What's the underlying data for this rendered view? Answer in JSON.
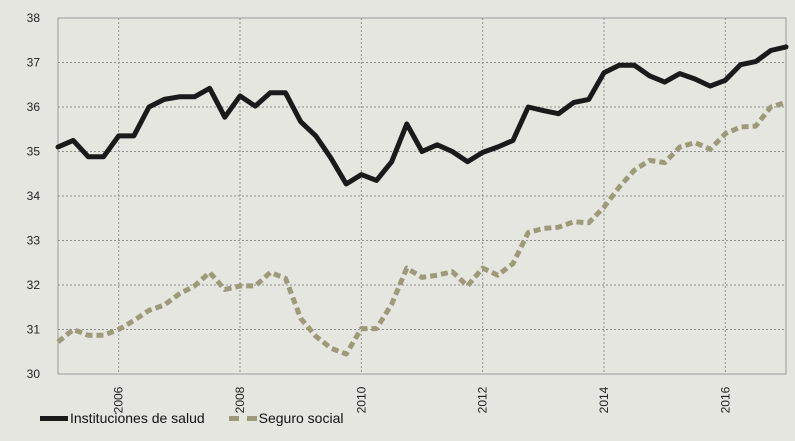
{
  "chart_data": {
    "type": "line",
    "title": "",
    "xlabel": "",
    "ylabel": "",
    "ylim": [
      30,
      38
    ],
    "xlim": [
      2005.0,
      2017.0
    ],
    "y_ticks": [
      "30",
      "31",
      "32",
      "33",
      "34",
      "35",
      "36",
      "37",
      "38"
    ],
    "x_ticks": [
      "2006",
      "2008",
      "2010",
      "2012",
      "2014",
      "2016"
    ],
    "grid": true,
    "legend": "bottom-left",
    "series": [
      {
        "name": "Instituciones de salud",
        "color": "#1a1a1a",
        "style": "solid",
        "x": [
          2005.0,
          2005.25,
          2005.5,
          2005.75,
          2006.0,
          2006.25,
          2006.5,
          2006.75,
          2007.0,
          2007.25,
          2007.5,
          2007.75,
          2008.0,
          2008.25,
          2008.5,
          2008.75,
          2009.0,
          2009.25,
          2009.5,
          2009.75,
          2010.0,
          2010.25,
          2010.5,
          2010.75,
          2011.0,
          2011.25,
          2011.5,
          2011.75,
          2012.0,
          2012.25,
          2012.5,
          2012.75,
          2013.0,
          2013.25,
          2013.5,
          2013.75,
          2014.0,
          2014.25,
          2014.5,
          2014.75,
          2015.0,
          2015.25,
          2015.5,
          2015.75,
          2016.0,
          2016.25,
          2016.5,
          2016.75,
          2017.0
        ],
        "values": [
          35.1,
          35.25,
          34.88,
          34.88,
          35.35,
          35.35,
          36.0,
          36.17,
          36.23,
          36.23,
          36.42,
          35.77,
          36.25,
          36.02,
          36.32,
          36.32,
          35.67,
          35.35,
          34.85,
          34.27,
          34.48,
          34.35,
          34.77,
          35.62,
          35.0,
          35.15,
          35.0,
          34.77,
          34.98,
          35.1,
          35.25,
          36.0,
          35.92,
          35.85,
          36.1,
          36.17,
          36.77,
          36.94,
          36.94,
          36.7,
          36.56,
          36.75,
          36.63,
          36.47,
          36.6,
          36.95,
          37.02,
          37.27,
          37.35
        ]
      },
      {
        "name": "Seguro social",
        "color": "#9c9a79",
        "style": "dashed",
        "x": [
          2005.0,
          2005.25,
          2005.5,
          2005.75,
          2006.0,
          2006.25,
          2006.5,
          2006.75,
          2007.0,
          2007.25,
          2007.5,
          2007.75,
          2008.0,
          2008.25,
          2008.5,
          2008.75,
          2009.0,
          2009.25,
          2009.5,
          2009.75,
          2010.0,
          2010.25,
          2010.5,
          2010.75,
          2011.0,
          2011.25,
          2011.5,
          2011.75,
          2012.0,
          2012.25,
          2012.5,
          2012.75,
          2013.0,
          2013.25,
          2013.5,
          2013.75,
          2014.0,
          2014.25,
          2014.5,
          2014.75,
          2015.0,
          2015.25,
          2015.5,
          2015.75,
          2016.0,
          2016.25,
          2016.5,
          2016.75,
          2017.0
        ],
        "values": [
          30.72,
          31.0,
          30.87,
          30.87,
          31.0,
          31.2,
          31.43,
          31.55,
          31.8,
          31.98,
          32.28,
          31.9,
          31.98,
          31.98,
          32.28,
          32.15,
          31.25,
          30.85,
          30.58,
          30.45,
          31.02,
          31.02,
          31.57,
          32.38,
          32.17,
          32.22,
          32.3,
          31.98,
          32.38,
          32.22,
          32.48,
          33.18,
          33.27,
          33.3,
          33.42,
          33.4,
          33.75,
          34.2,
          34.58,
          34.8,
          34.75,
          35.1,
          35.2,
          35.05,
          35.4,
          35.55,
          35.57,
          36.0,
          36.1
        ]
      }
    ]
  }
}
